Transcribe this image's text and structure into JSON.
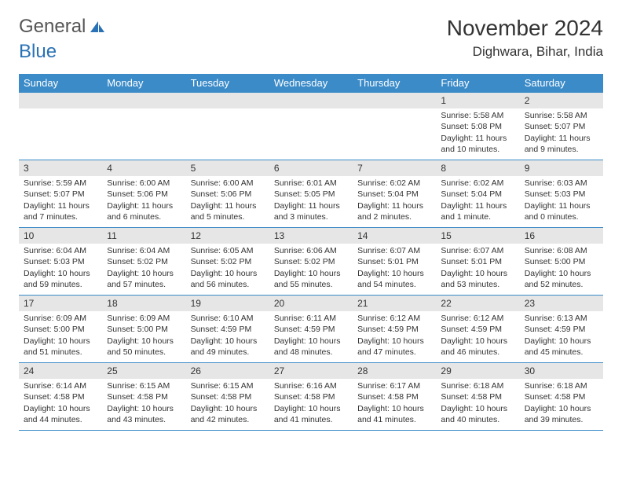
{
  "brand": {
    "part1": "General",
    "part2": "Blue"
  },
  "title": {
    "month": "November 2024",
    "location": "Dighwara, Bihar, India"
  },
  "colors": {
    "header_bg": "#3b8bc8",
    "header_fg": "#ffffff",
    "daynum_bg": "#e6e6e6",
    "border": "#3b8bc8",
    "text": "#333333",
    "logo_gray": "#555555",
    "logo_blue": "#2a72b5",
    "page_bg": "#ffffff"
  },
  "day_headers": [
    "Sunday",
    "Monday",
    "Tuesday",
    "Wednesday",
    "Thursday",
    "Friday",
    "Saturday"
  ],
  "weeks": [
    [
      {
        "empty": true
      },
      {
        "empty": true
      },
      {
        "empty": true
      },
      {
        "empty": true
      },
      {
        "empty": true
      },
      {
        "n": "1",
        "sunrise": "5:58 AM",
        "sunset": "5:08 PM",
        "daylight": "11 hours and 10 minutes."
      },
      {
        "n": "2",
        "sunrise": "5:58 AM",
        "sunset": "5:07 PM",
        "daylight": "11 hours and 9 minutes."
      }
    ],
    [
      {
        "n": "3",
        "sunrise": "5:59 AM",
        "sunset": "5:07 PM",
        "daylight": "11 hours and 7 minutes."
      },
      {
        "n": "4",
        "sunrise": "6:00 AM",
        "sunset": "5:06 PM",
        "daylight": "11 hours and 6 minutes."
      },
      {
        "n": "5",
        "sunrise": "6:00 AM",
        "sunset": "5:06 PM",
        "daylight": "11 hours and 5 minutes."
      },
      {
        "n": "6",
        "sunrise": "6:01 AM",
        "sunset": "5:05 PM",
        "daylight": "11 hours and 3 minutes."
      },
      {
        "n": "7",
        "sunrise": "6:02 AM",
        "sunset": "5:04 PM",
        "daylight": "11 hours and 2 minutes."
      },
      {
        "n": "8",
        "sunrise": "6:02 AM",
        "sunset": "5:04 PM",
        "daylight": "11 hours and 1 minute."
      },
      {
        "n": "9",
        "sunrise": "6:03 AM",
        "sunset": "5:03 PM",
        "daylight": "11 hours and 0 minutes."
      }
    ],
    [
      {
        "n": "10",
        "sunrise": "6:04 AM",
        "sunset": "5:03 PM",
        "daylight": "10 hours and 59 minutes."
      },
      {
        "n": "11",
        "sunrise": "6:04 AM",
        "sunset": "5:02 PM",
        "daylight": "10 hours and 57 minutes."
      },
      {
        "n": "12",
        "sunrise": "6:05 AM",
        "sunset": "5:02 PM",
        "daylight": "10 hours and 56 minutes."
      },
      {
        "n": "13",
        "sunrise": "6:06 AM",
        "sunset": "5:02 PM",
        "daylight": "10 hours and 55 minutes."
      },
      {
        "n": "14",
        "sunrise": "6:07 AM",
        "sunset": "5:01 PM",
        "daylight": "10 hours and 54 minutes."
      },
      {
        "n": "15",
        "sunrise": "6:07 AM",
        "sunset": "5:01 PM",
        "daylight": "10 hours and 53 minutes."
      },
      {
        "n": "16",
        "sunrise": "6:08 AM",
        "sunset": "5:00 PM",
        "daylight": "10 hours and 52 minutes."
      }
    ],
    [
      {
        "n": "17",
        "sunrise": "6:09 AM",
        "sunset": "5:00 PM",
        "daylight": "10 hours and 51 minutes."
      },
      {
        "n": "18",
        "sunrise": "6:09 AM",
        "sunset": "5:00 PM",
        "daylight": "10 hours and 50 minutes."
      },
      {
        "n": "19",
        "sunrise": "6:10 AM",
        "sunset": "4:59 PM",
        "daylight": "10 hours and 49 minutes."
      },
      {
        "n": "20",
        "sunrise": "6:11 AM",
        "sunset": "4:59 PM",
        "daylight": "10 hours and 48 minutes."
      },
      {
        "n": "21",
        "sunrise": "6:12 AM",
        "sunset": "4:59 PM",
        "daylight": "10 hours and 47 minutes."
      },
      {
        "n": "22",
        "sunrise": "6:12 AM",
        "sunset": "4:59 PM",
        "daylight": "10 hours and 46 minutes."
      },
      {
        "n": "23",
        "sunrise": "6:13 AM",
        "sunset": "4:59 PM",
        "daylight": "10 hours and 45 minutes."
      }
    ],
    [
      {
        "n": "24",
        "sunrise": "6:14 AM",
        "sunset": "4:58 PM",
        "daylight": "10 hours and 44 minutes."
      },
      {
        "n": "25",
        "sunrise": "6:15 AM",
        "sunset": "4:58 PM",
        "daylight": "10 hours and 43 minutes."
      },
      {
        "n": "26",
        "sunrise": "6:15 AM",
        "sunset": "4:58 PM",
        "daylight": "10 hours and 42 minutes."
      },
      {
        "n": "27",
        "sunrise": "6:16 AM",
        "sunset": "4:58 PM",
        "daylight": "10 hours and 41 minutes."
      },
      {
        "n": "28",
        "sunrise": "6:17 AM",
        "sunset": "4:58 PM",
        "daylight": "10 hours and 41 minutes."
      },
      {
        "n": "29",
        "sunrise": "6:18 AM",
        "sunset": "4:58 PM",
        "daylight": "10 hours and 40 minutes."
      },
      {
        "n": "30",
        "sunrise": "6:18 AM",
        "sunset": "4:58 PM",
        "daylight": "10 hours and 39 minutes."
      }
    ]
  ],
  "labels": {
    "sunrise": "Sunrise:",
    "sunset": "Sunset:",
    "daylight": "Daylight:"
  }
}
